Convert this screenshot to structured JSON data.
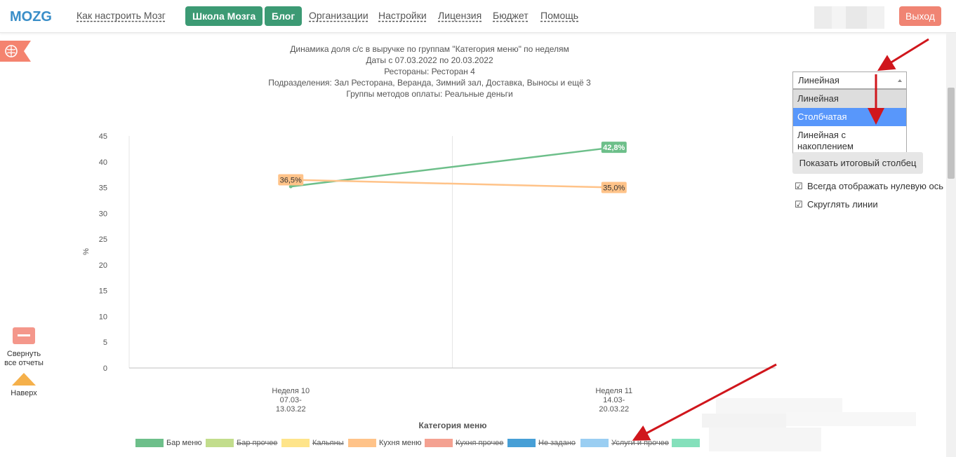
{
  "header": {
    "logo_text": "MOZG",
    "nav_links": [
      "Как настроить Мозг",
      "Организации",
      "Настройки",
      "Лицензия",
      "Бюджет",
      "Помощь"
    ],
    "school_btn": "Школа Мозга",
    "blog_btn": "Блог",
    "logout": "Выход"
  },
  "sidebar": {
    "collapse_label_1": "Свернуть",
    "collapse_label_2": "все отчеты",
    "up_label": "Наверх"
  },
  "chart_header": {
    "line1": "Динамика доля с/с в выручке по группам \"Категория меню\" по неделям",
    "line2": "Даты с 07.03.2022 по 20.03.2022",
    "line3": "Рестораны: Ресторан 4",
    "line4": "Подразделения: Зал Ресторана, Веранда, Зимний зал, Доставка, Выносы и ещё 3",
    "line5": "Группы методов оплаты: Реальные деньги"
  },
  "controls": {
    "chart_type_selected": "Линейная",
    "chart_type_options": [
      "Линейная",
      "Столбчатая",
      "Линейная с накоплением"
    ],
    "highlighted_option": "Столбчатая",
    "total_column_btn": "Показать итоговый столбец",
    "check_zero_axis": "Всегда отображать нулевую ось",
    "check_round_lines": "Скруглять линии"
  },
  "chart_data": {
    "type": "line",
    "ylabel": "%",
    "xlabel": "Категория меню",
    "ylim": [
      0,
      45
    ],
    "yticks": [
      0,
      5,
      10,
      15,
      20,
      25,
      30,
      35,
      40,
      45
    ],
    "categories": [
      {
        "l1": "Неделя 10",
        "l2": "07.03-",
        "l3": "13.03.22"
      },
      {
        "l1": "Неделя 11",
        "l2": "14.03-",
        "l3": "20.03.22"
      }
    ],
    "series": [
      {
        "name": "Бар меню",
        "color": "#6dbf8a",
        "values": [
          35.2,
          42.8
        ],
        "labels": [
          "",
          "42,8%"
        ],
        "visible": true
      },
      {
        "name": "Кухня меню",
        "color": "#ffc389",
        "values": [
          36.5,
          35.0
        ],
        "labels": [
          "36,5%",
          "35,0%"
        ],
        "visible": true
      }
    ],
    "legend": [
      {
        "name": "Бар меню",
        "color": "#6dbf8a",
        "off": false
      },
      {
        "name": "Бар прочее",
        "color": "#c2dd8c",
        "off": true
      },
      {
        "name": "Кальяны",
        "color": "#fee48a",
        "off": true
      },
      {
        "name": "Кухня меню",
        "color": "#ffc389",
        "off": false
      },
      {
        "name": "Кухня прочее",
        "color": "#f4a191",
        "off": true
      },
      {
        "name": "Не задано",
        "color": "#479fd6",
        "off": true
      },
      {
        "name": "Услуги и прочее",
        "color": "#9acef2",
        "off": true
      },
      {
        "name": "",
        "color": "#84e0bb",
        "off": true
      }
    ],
    "grid": true
  }
}
